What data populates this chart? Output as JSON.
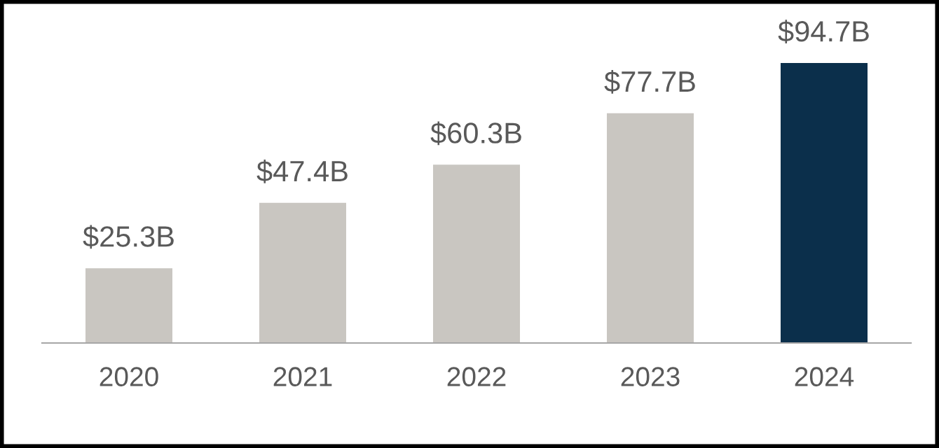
{
  "chart_data": {
    "type": "bar",
    "categories": [
      "2020",
      "2021",
      "2022",
      "2023",
      "2024"
    ],
    "values": [
      25.3,
      47.4,
      60.3,
      77.7,
      94.7
    ],
    "colors": [
      "#c9c6c1",
      "#c9c6c1",
      "#c9c6c1",
      "#c9c6c1",
      "#0b2f4b"
    ],
    "value_labels": [
      "$25.3B",
      "$47.4B",
      "$60.3B",
      "$77.7B",
      "$94.7B"
    ],
    "grid": false,
    "legend": false
  }
}
